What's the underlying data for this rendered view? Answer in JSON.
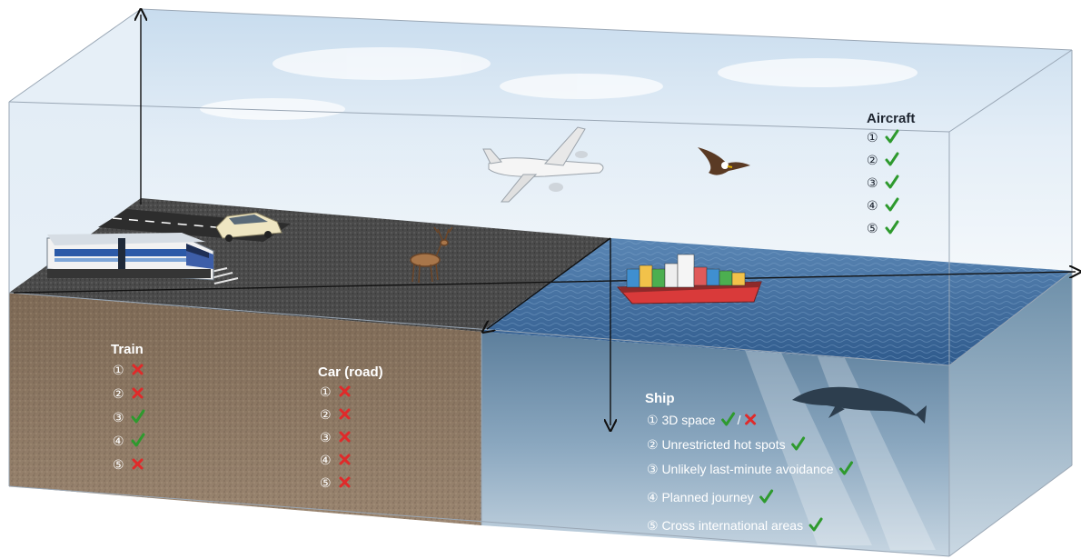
{
  "aircraft": {
    "title": "Aircraft",
    "items": [
      {
        "num": "①",
        "mark": "check"
      },
      {
        "num": "②",
        "mark": "check"
      },
      {
        "num": "③",
        "mark": "check"
      },
      {
        "num": "④",
        "mark": "check"
      },
      {
        "num": "⑤",
        "mark": "check"
      }
    ]
  },
  "train": {
    "title": "Train",
    "items": [
      {
        "num": "①",
        "mark": "cross"
      },
      {
        "num": "②",
        "mark": "cross"
      },
      {
        "num": "③",
        "mark": "check"
      },
      {
        "num": "④",
        "mark": "check"
      },
      {
        "num": "⑤",
        "mark": "cross"
      }
    ]
  },
  "car": {
    "title": "Car (road)",
    "items": [
      {
        "num": "①",
        "mark": "cross"
      },
      {
        "num": "②",
        "mark": "cross"
      },
      {
        "num": "③",
        "mark": "cross"
      },
      {
        "num": "④",
        "mark": "cross"
      },
      {
        "num": "⑤",
        "mark": "cross"
      }
    ]
  },
  "ship": {
    "title": "Ship",
    "items": [
      {
        "num": "①",
        "text": "3D space",
        "mark": "check-cross",
        "sep": "/"
      },
      {
        "num": "②",
        "text": "Unrestricted hot spots",
        "mark": "check"
      },
      {
        "num": "③",
        "text": "Unlikely last-minute avoidance",
        "mark": "check"
      },
      {
        "num": "④",
        "text": "Planned journey",
        "mark": "check"
      },
      {
        "num": "⑤",
        "text": "Cross international areas",
        "mark": "check"
      }
    ]
  },
  "colors": {
    "check": "#2e9a2e",
    "cross": "#e02a2a",
    "sky_top": "#c9dff2",
    "ground": "#8a7560",
    "sea": "#3f6a9c",
    "underwater": "#8fb0c8"
  }
}
